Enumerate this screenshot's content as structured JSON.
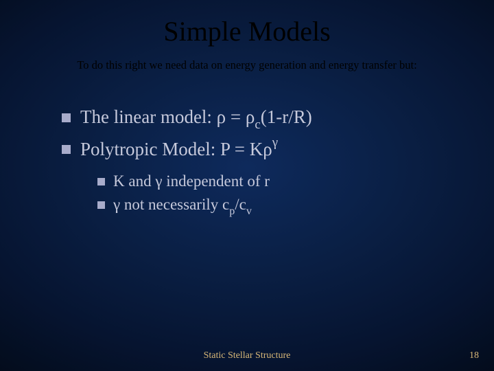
{
  "slide": {
    "title": "Simple Models",
    "subtitle": "To do this right we need data on energy generation and energy transfer but:",
    "bullets": [
      {
        "prefix": "The linear model:  ρ = ρ",
        "sub1": "c",
        "mid": "(1-r/R)"
      },
      {
        "prefix": "Polytropic Model: P = Kρ",
        "sup1": "γ"
      }
    ],
    "subbullets": [
      {
        "text": "K and γ independent of r"
      },
      {
        "prefix": "γ not necessarily c",
        "sub1": "p",
        "mid": "/c",
        "sub2": "v"
      }
    ],
    "footer": "Static Stellar Structure",
    "page_number": "18"
  },
  "style": {
    "background_gradient": [
      "#0e2a5c",
      "#0a1f44",
      "#061430",
      "#020812"
    ],
    "title_color": "#000000",
    "subtitle_color": "#000000",
    "text_color": "#c6c9db",
    "bullet_color": "#a8accb",
    "footer_color": "#d8b878",
    "title_fontsize": 40,
    "subtitle_fontsize": 16.5,
    "bullet_l1_fontsize": 27,
    "bullet_l2_fontsize": 23,
    "footer_fontsize": 14,
    "font_family": "Times New Roman"
  }
}
